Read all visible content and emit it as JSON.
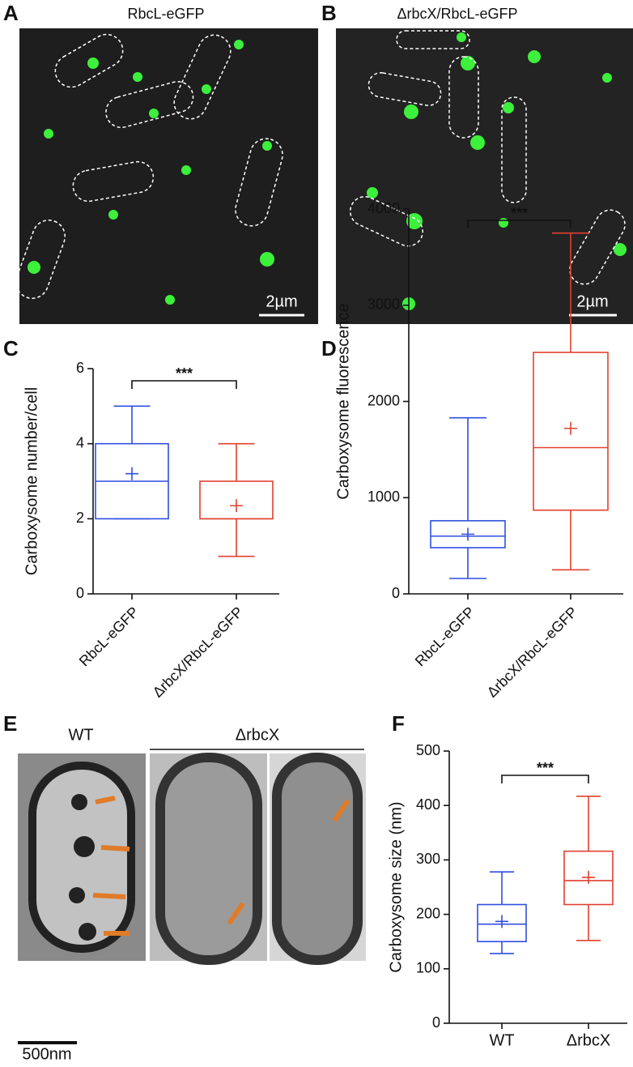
{
  "panels": {
    "A": "A",
    "B": "B",
    "C": "C",
    "D": "D",
    "E": "E",
    "F": "F"
  },
  "images": {
    "a_title": "RbcL-eGFP",
    "b_title": "ΔrbcX/RbcL-eGFP",
    "a_scale": "2µm",
    "b_scale": "2µm",
    "e_wt": "WT",
    "e_mutant": "ΔrbcX",
    "e_scale": "500nm"
  },
  "chart_data": [
    {
      "type": "box",
      "y_label": "Carboxysome number/cell",
      "categories": [
        "RbcL-eGFP",
        "ΔrbcX/RbcL-eGFP"
      ],
      "series": [
        {
          "name": "RbcL-eGFP",
          "color": "#2f4fe0",
          "min": 2,
          "q1": 2,
          "median": 3,
          "q3": 4,
          "max": 5,
          "mean": 3.2
        },
        {
          "name": "ΔrbcX/RbcL-eGFP",
          "color": "#e0412f",
          "min": 1,
          "q1": 2,
          "median": 2,
          "q3": 3,
          "max": 4,
          "mean": 2.35
        }
      ],
      "ylim": [
        0,
        6
      ],
      "yticks": [
        0,
        2,
        4,
        6
      ],
      "significance": "***"
    },
    {
      "type": "box",
      "y_label": "Carboxysome fluorescence",
      "categories": [
        "RbcL-eGFP",
        "ΔrbcX/RbcL-eGFP"
      ],
      "series": [
        {
          "name": "RbcL-eGFP",
          "color": "#2f4fe0",
          "min": 160,
          "q1": 480,
          "median": 600,
          "q3": 760,
          "max": 1830,
          "mean": 620
        },
        {
          "name": "ΔrbcX/RbcL-eGFP",
          "color": "#e0412f",
          "min": 250,
          "q1": 870,
          "median": 1520,
          "q3": 2510,
          "max": 3750,
          "mean": 1720
        }
      ],
      "ylim": [
        0,
        4000
      ],
      "yticks": [
        0,
        1000,
        2000,
        3000,
        4000
      ],
      "significance": "***"
    },
    {
      "type": "box",
      "y_label": "Carboxysome size (nm)",
      "categories": [
        "WT",
        "ΔrbcX"
      ],
      "series": [
        {
          "name": "WT",
          "color": "#2f4fe0",
          "min": 128,
          "q1": 150,
          "median": 182,
          "q3": 218,
          "max": 278,
          "mean": 187
        },
        {
          "name": "ΔrbcX",
          "color": "#e0412f",
          "min": 152,
          "q1": 218,
          "median": 262,
          "q3": 316,
          "max": 417,
          "mean": 268
        }
      ],
      "ylim": [
        0,
        500
      ],
      "yticks": [
        0,
        100,
        200,
        300,
        400,
        500
      ],
      "significance": "***"
    }
  ]
}
